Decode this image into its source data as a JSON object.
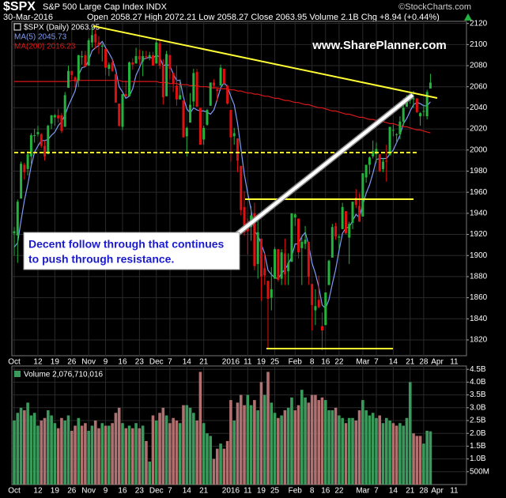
{
  "chart_data": {
    "type": "candlestick",
    "title": "$SPX",
    "subtitle": "S&P 500 Large Cap Index INDX",
    "source": "©StockCharts.com",
    "date": "30-Mar-2016",
    "quote": "Open 2058.27 High 2072.21 Low 2058.27 Close 2063.95 Volume 2.1B Chg +8.94 (+0.44%)",
    "watermark": "www.SharePlanner.com",
    "annotation": [
      "Decent follow through that continues",
      "to push through resistance."
    ],
    "price_label": "$SPX (Daily) 2063.95",
    "categories": [
      "Oct",
      null,
      null,
      null,
      null,
      null,
      null,
      "12",
      null,
      null,
      null,
      null,
      "19",
      null,
      null,
      null,
      null,
      "26",
      null,
      null,
      null,
      null,
      "Nov",
      null,
      null,
      null,
      null,
      "9",
      null,
      null,
      null,
      null,
      "16",
      null,
      null,
      null,
      null,
      "23",
      null,
      null,
      null,
      null,
      "Dec",
      null,
      null,
      null,
      "7",
      null,
      null,
      null,
      null,
      "14",
      null,
      null,
      null,
      null,
      "21",
      null,
      null,
      null,
      null,
      null,
      null,
      null,
      "2016",
      null,
      null,
      null,
      null,
      "11",
      null,
      null,
      null,
      "19",
      null,
      null,
      null,
      "25",
      null,
      null,
      null,
      null,
      null,
      "Feb",
      null,
      null,
      null,
      null,
      "8",
      null,
      null,
      null,
      "16",
      null,
      null,
      null,
      "22",
      null,
      null,
      null,
      null,
      null,
      null,
      "Mar",
      null,
      null,
      null,
      "7",
      null,
      null,
      null,
      null,
      "14",
      null,
      null,
      null,
      null,
      "21",
      null,
      null,
      null,
      "28",
      null,
      null
    ],
    "extra_categories": [
      "Apr",
      "11"
    ],
    "open": [
      1921,
      1919,
      1954,
      1986,
      1982,
      1994,
      2014,
      2015,
      2015,
      2004,
      1996,
      2025,
      2031,
      2033,
      2033,
      2022,
      2059,
      2075,
      2069,
      2066,
      2088,
      2090,
      2080,
      2102,
      2110,
      2102,
      2098,
      2096,
      2077,
      2083,
      2072,
      2044,
      2022,
      2053,
      2051,
      2083,
      2082,
      2089,
      2084,
      2089,
      2088,
      2090,
      2082,
      2101,
      2080,
      2051,
      2090,
      2073,
      2061,
      2048,
      2047,
      2013,
      2026,
      2046,
      2074,
      2040,
      2010,
      2024,
      2042,
      2064,
      2058,
      2061,
      2077,
      2061,
      2038,
      2013,
      2011,
      1985,
      1946,
      1927,
      1927,
      1940,
      1892,
      1916,
      1888,
      1876,
      1860,
      1878,
      1906,
      1878,
      1902,
      1885,
      1894,
      1936,
      1935,
      1907,
      1911,
      1913,
      1873,
      1848,
      1858,
      1833,
      1834,
      1872,
      1898,
      1928,
      1917,
      1925,
      1942,
      1917,
      1931,
      1955,
      1947,
      1937,
      1974,
      1986,
      1994,
      1996,
      1996,
      1982,
      1990,
      1995,
      2019,
      2015,
      2015,
      2027,
      2041,
      2047,
      2048,
      2049,
      2032,
      2037,
      2032,
      2058.27
    ],
    "high": [
      1927,
      1953,
      1989,
      1988,
      1999,
      2016,
      2020,
      2023,
      2016,
      2009,
      2024,
      2033,
      2034,
      2039,
      2035,
      2055,
      2080,
      2075,
      2070,
      2090,
      2094,
      2094,
      2106,
      2116,
      2114,
      2108,
      2101,
      2096,
      2083,
      2086,
      2072,
      2044,
      2053,
      2066,
      2084,
      2087,
      2097,
      2095,
      2094,
      2094,
      2093,
      2093,
      2104,
      2104,
      2086,
      2094,
      2090,
      2073,
      2080,
      2067,
      2047,
      2022,
      2054,
      2077,
      2077,
      2040,
      2023,
      2039,
      2064,
      2067,
      2058,
      2081,
      2077,
      2062,
      2038,
      2021,
      2011,
      1985,
      1961,
      1935,
      1947,
      1950,
      1935,
      1916,
      1902,
      1876,
      1889,
      1908,
      1906,
      1906,
      1916,
      1902,
      1940,
      1940,
      1935,
      1918,
      1928,
      1913,
      1873,
      1868,
      1881,
      1846,
      1865,
      1896,
      1930,
      1931,
      1920,
      1950,
      1942,
      1932,
      1951,
      1963,
      1959,
      1978,
      1986,
      1994,
      2009,
      2007,
      1996,
      1992,
      2005,
      2022,
      2024,
      2016,
      2032,
      2049,
      2052,
      2053,
      2056,
      2049,
      2036,
      2043,
      2057,
      2072.21
    ],
    "low": [
      1900,
      1893,
      1954,
      1972,
      1976,
      1987,
      2007,
      2013,
      2002,
      1990,
      1996,
      2020,
      2023,
      2026,
      2016,
      2022,
      2059,
      2067,
      2059,
      2060,
      2081,
      2079,
      2080,
      2097,
      2096,
      2091,
      2084,
      2071,
      2070,
      2074,
      2045,
      2022,
      2019,
      2050,
      2051,
      2076,
      2082,
      2081,
      2070,
      2086,
      2085,
      2080,
      2082,
      2077,
      2043,
      2051,
      2067,
      2055,
      2042,
      2048,
      2012,
      1994,
      2026,
      2041,
      2041,
      2005,
      2005,
      2023,
      2042,
      2058,
      2046,
      2061,
      2061,
      2043,
      1989,
      2005,
      1979,
      1938,
      1919,
      1901,
      1914,
      1886,
      1878,
      1857,
      1872,
      1812,
      1848,
      1878,
      1875,
      1872,
      1872,
      1872,
      1894,
      1928,
      1897,
      1872,
      1906,
      1872,
      1829,
      1834,
      1850,
      1810,
      1834,
      1872,
      1898,
      1915,
      1906,
      1925,
      1920,
      1892,
      1925,
      1945,
      1932,
      1937,
      1969,
      1977,
      1992,
      1988,
      1979,
      1979,
      1970,
      1995,
      2013,
      2006,
      2010,
      2023,
      2041,
      2044,
      2040,
      2035,
      2023,
      2032,
      2029,
      2058.27
    ],
    "close": [
      1923,
      1951,
      1987,
      1979,
      1996,
      2014,
      2014,
      2017,
      2004,
      1994,
      2023,
      2033,
      2033,
      2030,
      2018,
      2052,
      2075,
      2071,
      2065,
      2090,
      2089,
      2079,
      2104,
      2109,
      2102,
      2099,
      2099,
      2078,
      2081,
      2075,
      2045,
      2023,
      2053,
      2051,
      2083,
      2081,
      2089,
      2086,
      2089,
      2088,
      2090,
      2080,
      2102,
      2080,
      2050,
      2091,
      2077,
      2063,
      2048,
      2052,
      2012,
      2021,
      2043,
      2073,
      2041,
      2005,
      2021,
      2038,
      2064,
      2061,
      2056,
      2078,
      2063,
      2044,
      2012,
      2016,
      1990,
      1943,
      1922,
      1923,
      1938,
      1890,
      1922,
      1880,
      1881,
      1859,
      1868,
      1906,
      1877,
      1903,
      1882,
      1893,
      1940,
      1939,
      1903,
      1913,
      1915,
      1880,
      1853,
      1852,
      1851,
      1829,
      1865,
      1895,
      1927,
      1918,
      1918,
      1946,
      1921,
      1930,
      1951,
      1948,
      1932,
      1978,
      1986,
      1993,
      1999,
      2001,
      1980,
      1989,
      1989,
      2022,
      2019,
      2015,
      2027,
      2040,
      2050,
      2051,
      2049,
      2036,
      2035,
      2037,
      2055,
      2063.95
    ],
    "up_color": "#22b43c",
    "down_color": "#e01010",
    "ylim": [
      1805,
      2122
    ],
    "yticks": [
      1820,
      1840,
      1860,
      1880,
      1900,
      1920,
      1940,
      1960,
      1980,
      2000,
      2020,
      2040,
      2060,
      2080,
      2100,
      2120
    ],
    "grid": true,
    "overlays": [
      {
        "name": "MA(5) 2045.73",
        "color": "#7f9cf5",
        "values": [
          1908,
          1912,
          1933,
          1952,
          1967,
          1985,
          1998,
          2004,
          2009,
          2009,
          2010,
          2014,
          2017,
          2023,
          2027,
          2033,
          2042,
          2049,
          2056,
          2071,
          2078,
          2079,
          2085,
          2094,
          2097,
          2099,
          2103,
          2097,
          2092,
          2086,
          2076,
          2060,
          2055,
          2049,
          2051,
          2058,
          2071,
          2078,
          2086,
          2087,
          2088,
          2087,
          2090,
          2088,
          2080,
          2081,
          2080,
          2072,
          2066,
          2066,
          2050,
          2039,
          2035,
          2040,
          2038,
          2037,
          2037,
          2036,
          2034,
          2038,
          2048,
          2059,
          2064,
          2060,
          2051,
          2043,
          2025,
          2001,
          1977,
          1959,
          1943,
          1923,
          1919,
          1911,
          1902,
          1886,
          1882,
          1879,
          1878,
          1883,
          1887,
          1892,
          1899,
          1911,
          1911,
          1918,
          1922,
          1910,
          1893,
          1883,
          1870,
          1853,
          1850,
          1858,
          1873,
          1887,
          1905,
          1921,
          1926,
          1927,
          1933,
          1939,
          1936,
          1948,
          1959,
          1967,
          1978,
          1991,
          1992,
          1992,
          1992,
          1996,
          2000,
          2007,
          2014,
          2025,
          2030,
          2037,
          2043,
          2045,
          2044,
          2042,
          2042,
          2045.73
        ]
      },
      {
        "name": "MA(200) 2016.23",
        "color": "#d81818",
        "values": [
          2065,
          2065,
          2065,
          2065,
          2065,
          2065,
          2065,
          2065,
          2065,
          2065,
          2065,
          2065,
          2065,
          2065,
          2065,
          2065,
          2065,
          2066,
          2066,
          2066,
          2066,
          2066,
          2066,
          2066,
          2066,
          2066,
          2066,
          2066,
          2066,
          2066,
          2066,
          2066,
          2065,
          2065,
          2065,
          2065,
          2065,
          2065,
          2065,
          2065,
          2065,
          2065,
          2065,
          2064,
          2064,
          2064,
          2063,
          2063,
          2063,
          2062,
          2062,
          2062,
          2061,
          2061,
          2061,
          2060,
          2060,
          2060,
          2059,
          2059,
          2059,
          2058,
          2058,
          2058,
          2057,
          2057,
          2056,
          2056,
          2055,
          2054,
          2054,
          2053,
          2053,
          2052,
          2051,
          2051,
          2050,
          2049,
          2049,
          2048,
          2047,
          2047,
          2046,
          2045,
          2045,
          2044,
          2043,
          2043,
          2042,
          2041,
          2040,
          2040,
          2039,
          2038,
          2037,
          2037,
          2036,
          2035,
          2034,
          2034,
          2033,
          2032,
          2031,
          2031,
          2030,
          2029,
          2029,
          2028,
          2027,
          2027,
          2026,
          2025,
          2025,
          2024,
          2023,
          2022,
          2022,
          2021,
          2020,
          2019,
          2019,
          2018,
          2017,
          2016.23
        ]
      }
    ],
    "volume": {
      "label": "Volume 2,076,710,016",
      "up_color": "#3a9a5c",
      "down_color": "#b07070",
      "values": [
        2.5,
        2.8,
        3.0,
        2.9,
        3.2,
        2.7,
        2.8,
        2.3,
        2.5,
        2.6,
        2.9,
        2.7,
        2.4,
        2.2,
        2.6,
        2.5,
        2.7,
        2.1,
        2.3,
        2.6,
        2.3,
        2.4,
        2.1,
        2.3,
        2.5,
        2.2,
        2.4,
        2.3,
        2.3,
        2.4,
        2.8,
        3.0,
        2.4,
        2.2,
        2.3,
        2.2,
        2.4,
        2.2,
        2.3,
        1.7,
        0.9,
        2.7,
        2.5,
        2.8,
        3.0,
        2.7,
        2.4,
        2.6,
        2.5,
        2.4,
        3.1,
        3.1,
        3.0,
        2.8,
        2.5,
        4.4,
        2.4,
        2.0,
        1.9,
        1.0,
        1.4,
        1.6,
        1.4,
        1.7,
        3.3,
        2.5,
        3.2,
        3.5,
        3.1,
        3.5,
        3.1,
        3.3,
        2.9,
        4.0,
        3.5,
        4.4,
        3.2,
        2.8,
        2.6,
        2.7,
        2.9,
        3.0,
        3.4,
        2.9,
        3.1,
        3.7,
        3.4,
        3.2,
        3.5,
        3.5,
        3.3,
        3.4,
        3.3,
        2.9,
        2.9,
        3.0,
        2.7,
        2.6,
        2.4,
        2.6,
        2.6,
        2.5,
        2.9,
        3.3,
        2.9,
        2.7,
        2.8,
        2.6,
        2.7,
        2.4,
        2.6,
        2.5,
        2.4,
        2.3,
        2.4,
        2.3,
        2.6,
        4.0,
        2.0,
        1.9,
        1.9,
        1.6,
        2.1,
        2.08
      ],
      "ylim": [
        0,
        4.63
      ],
      "yticks": [
        {
          "value": 0.5,
          "label": "500M"
        },
        {
          "value": 1,
          "label": "1.0B"
        },
        {
          "value": 1.5,
          "label": "1.5B"
        },
        {
          "value": 2,
          "label": "2.0B"
        },
        {
          "value": 2.5,
          "label": "2.5B"
        },
        {
          "value": 3,
          "label": "3.0B"
        },
        {
          "value": 3.5,
          "label": "3.5B"
        },
        {
          "value": 4,
          "label": "4.0B"
        },
        {
          "value": 4.5,
          "label": "4.5B"
        }
      ]
    }
  }
}
